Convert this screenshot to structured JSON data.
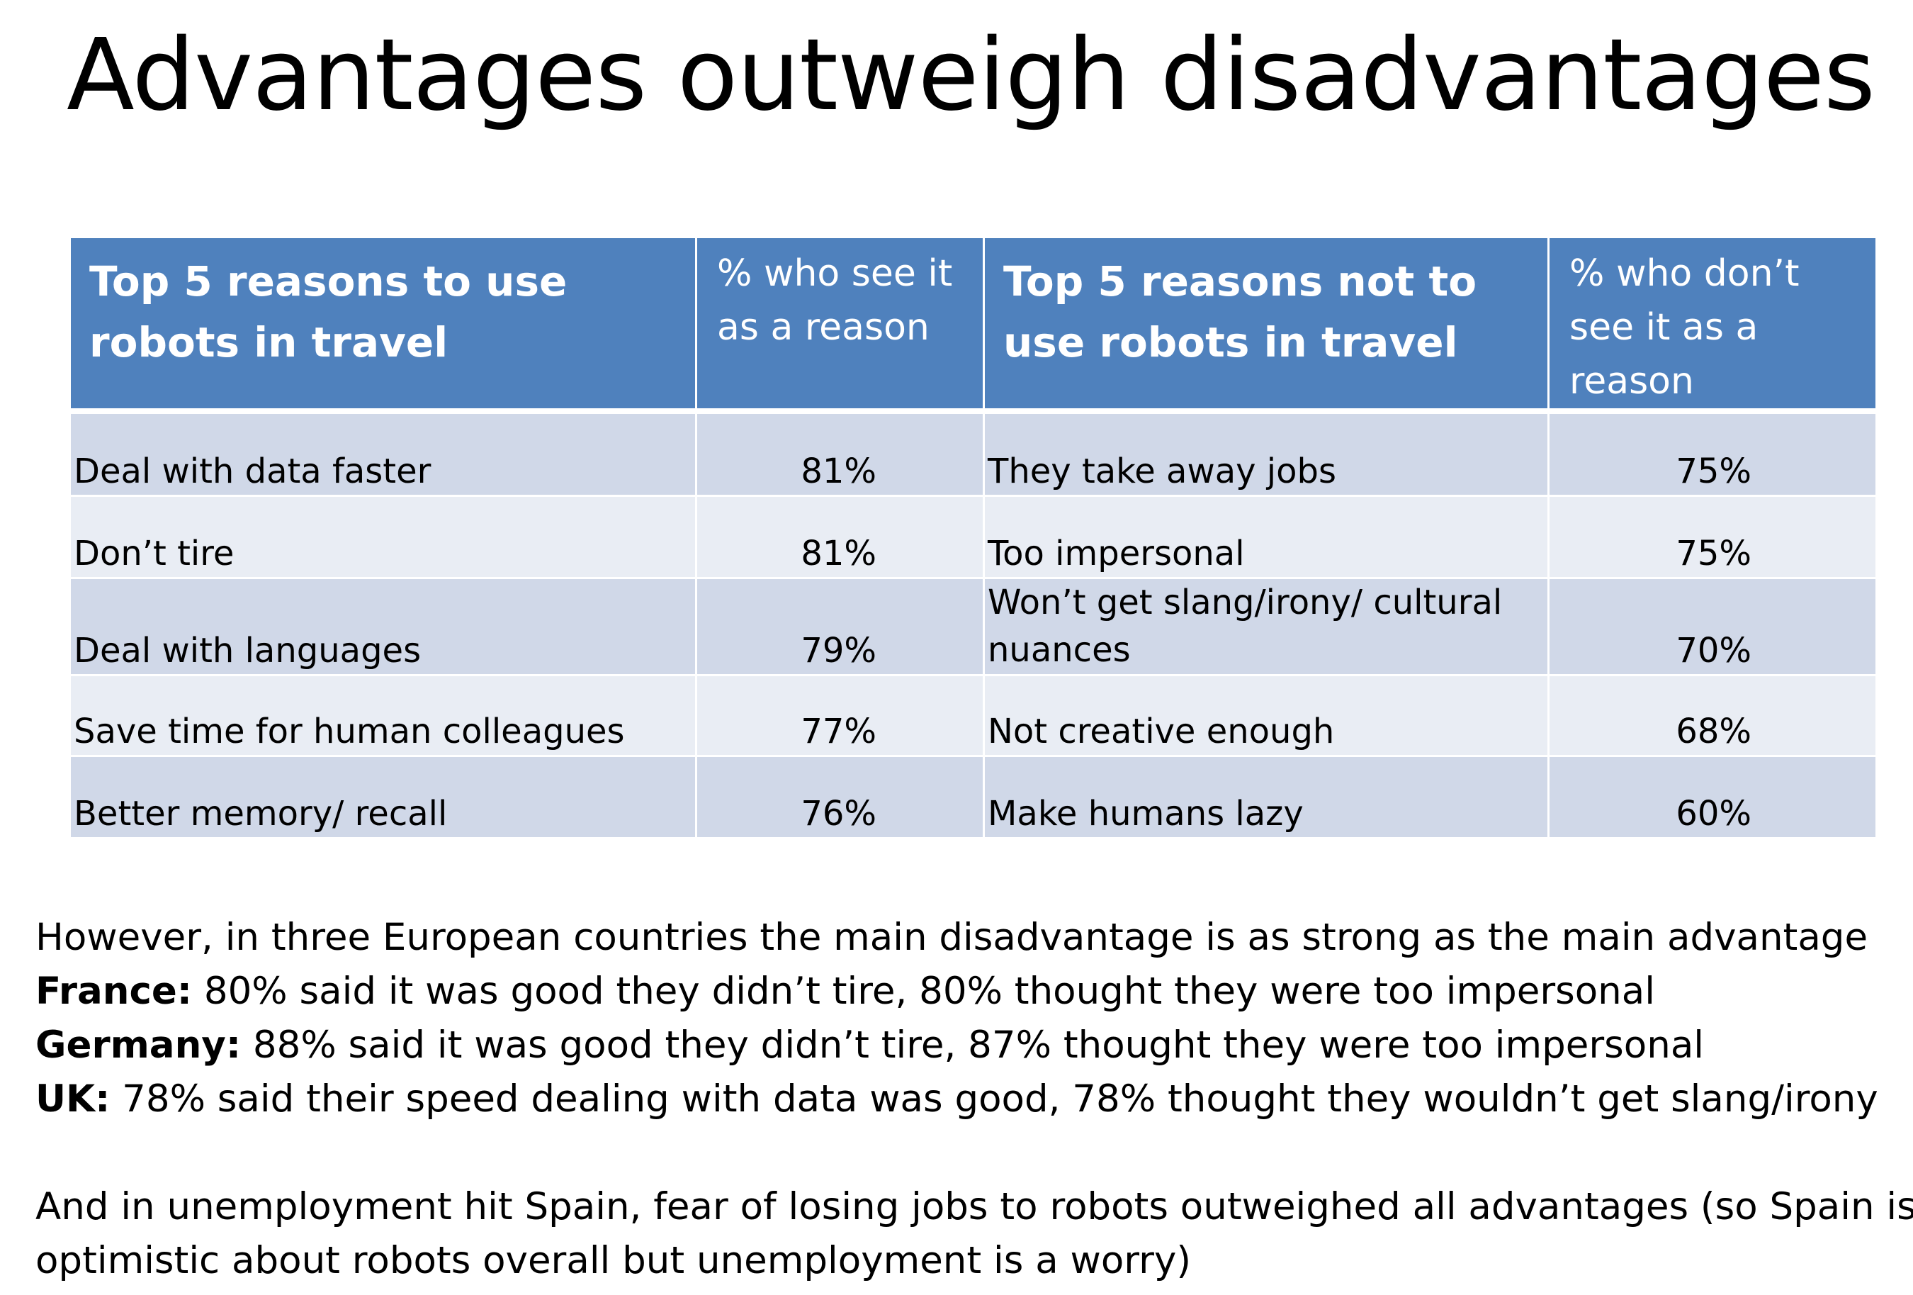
{
  "title": "Advantages outweigh disadvantages",
  "table": {
    "headers": [
      "Top 5 reasons to use robots in travel",
      "% who see it as a reason",
      "Top 5 reasons not to use robots in travel",
      "% who don’t see it as a reason"
    ],
    "rows": [
      {
        "reason": "Deal with data faster",
        "pct": "81%",
        "not_reason": "They take away jobs",
        "not_pct": "75%"
      },
      {
        "reason": "Don’t tire",
        "pct": "81%",
        "not_reason": "Too impersonal",
        "not_pct": "75%"
      },
      {
        "reason": "Deal with languages",
        "pct": "79%",
        "not_reason": "Won’t get slang/irony/ cultural nuances",
        "not_pct": "70%"
      },
      {
        "reason": "Save time for human colleagues",
        "pct": "77%",
        "not_reason": "Not creative enough",
        "not_pct": "68%"
      },
      {
        "reason": "Better memory/ recall",
        "pct": "76%",
        "not_reason": "Make humans lazy",
        "not_pct": "60%"
      }
    ]
  },
  "notes": {
    "intro": "However, in three European countries the main disadvantage is as strong as the main advantage",
    "lines": [
      {
        "label": "France:",
        "text": " 80% said it was good they didn’t tire, 80% thought they were too impersonal"
      },
      {
        "label": "Germany:",
        "text": " 88% said it was good they didn’t tire, 87% thought they were too impersonal"
      },
      {
        "label": "UK:",
        "text": " 78% said their speed dealing with data was good, 78% thought they wouldn’t get slang/irony"
      }
    ],
    "spain_line1": "And in unemployment hit Spain, fear of losing jobs to robots outweighed all advantages (so Spain is",
    "spain_line2": "optimistic about robots overall but unemployment is a worry)"
  }
}
